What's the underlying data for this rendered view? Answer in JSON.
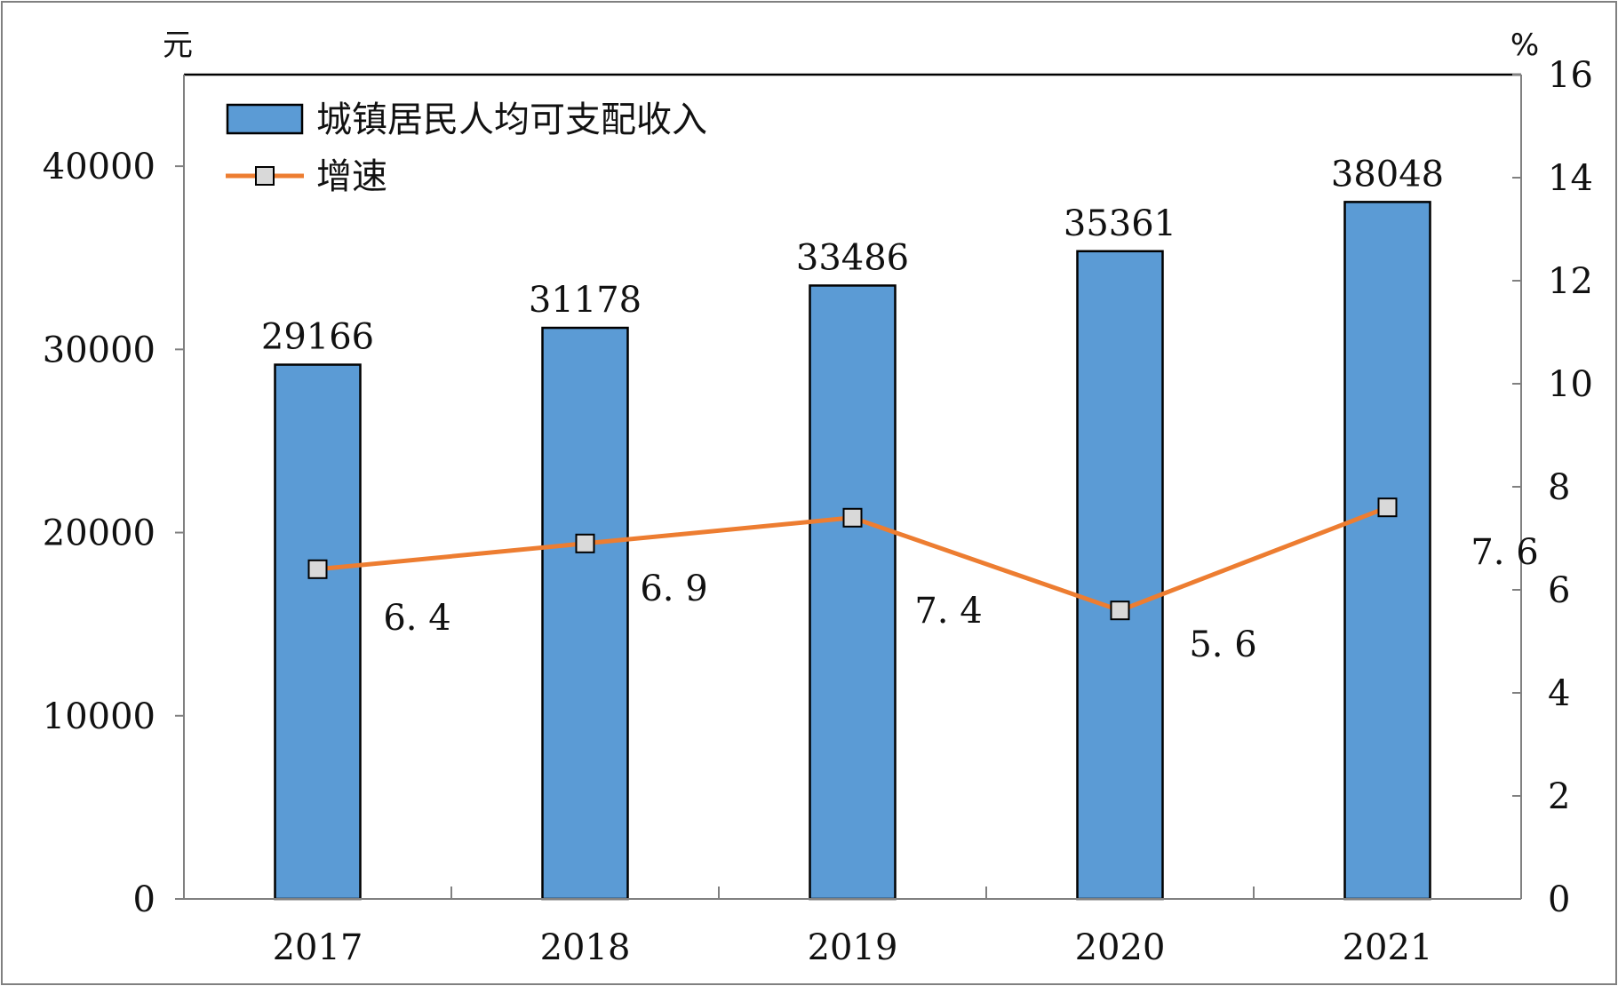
{
  "chart_data": {
    "type": "bar",
    "categories": [
      "2017",
      "2018",
      "2019",
      "2020",
      "2021"
    ],
    "series": [
      {
        "name": "城镇居民人均可支配收入",
        "type": "bar",
        "axis": "left",
        "values": [
          29166,
          31178,
          33486,
          35361,
          38048
        ],
        "data_labels": [
          "29166",
          "31178",
          "33486",
          "35361",
          "38048"
        ]
      },
      {
        "name": "增速",
        "type": "line",
        "axis": "right",
        "values": [
          6.4,
          6.9,
          7.4,
          5.6,
          7.6
        ],
        "data_labels": [
          "6. 4",
          "6. 9",
          "7. 4",
          "5. 6",
          "7. 6"
        ]
      }
    ],
    "left_axis": {
      "unit": "元",
      "range": [
        0,
        45000
      ],
      "ticks": [
        0,
        10000,
        20000,
        30000,
        40000
      ],
      "tick_labels": [
        "0",
        "10000",
        "20000",
        "30000",
        "40000"
      ]
    },
    "right_axis": {
      "unit": "%",
      "range": [
        0,
        16
      ],
      "ticks": [
        0,
        2,
        4,
        6,
        8,
        10,
        12,
        14,
        16
      ],
      "tick_labels": [
        "0",
        "2",
        "4",
        "6",
        "8",
        "10",
        "12",
        "14",
        "16"
      ]
    },
    "legend": {
      "placement": "top-left",
      "items": [
        "城镇居民人均可支配收入",
        "增速"
      ]
    },
    "grid": false,
    "colors": {
      "bar_fill": "#5b9bd5",
      "bar_stroke": "#000000",
      "line": "#ed7d31",
      "marker_fill": "#d9d9d9",
      "marker_stroke": "#000000"
    }
  }
}
